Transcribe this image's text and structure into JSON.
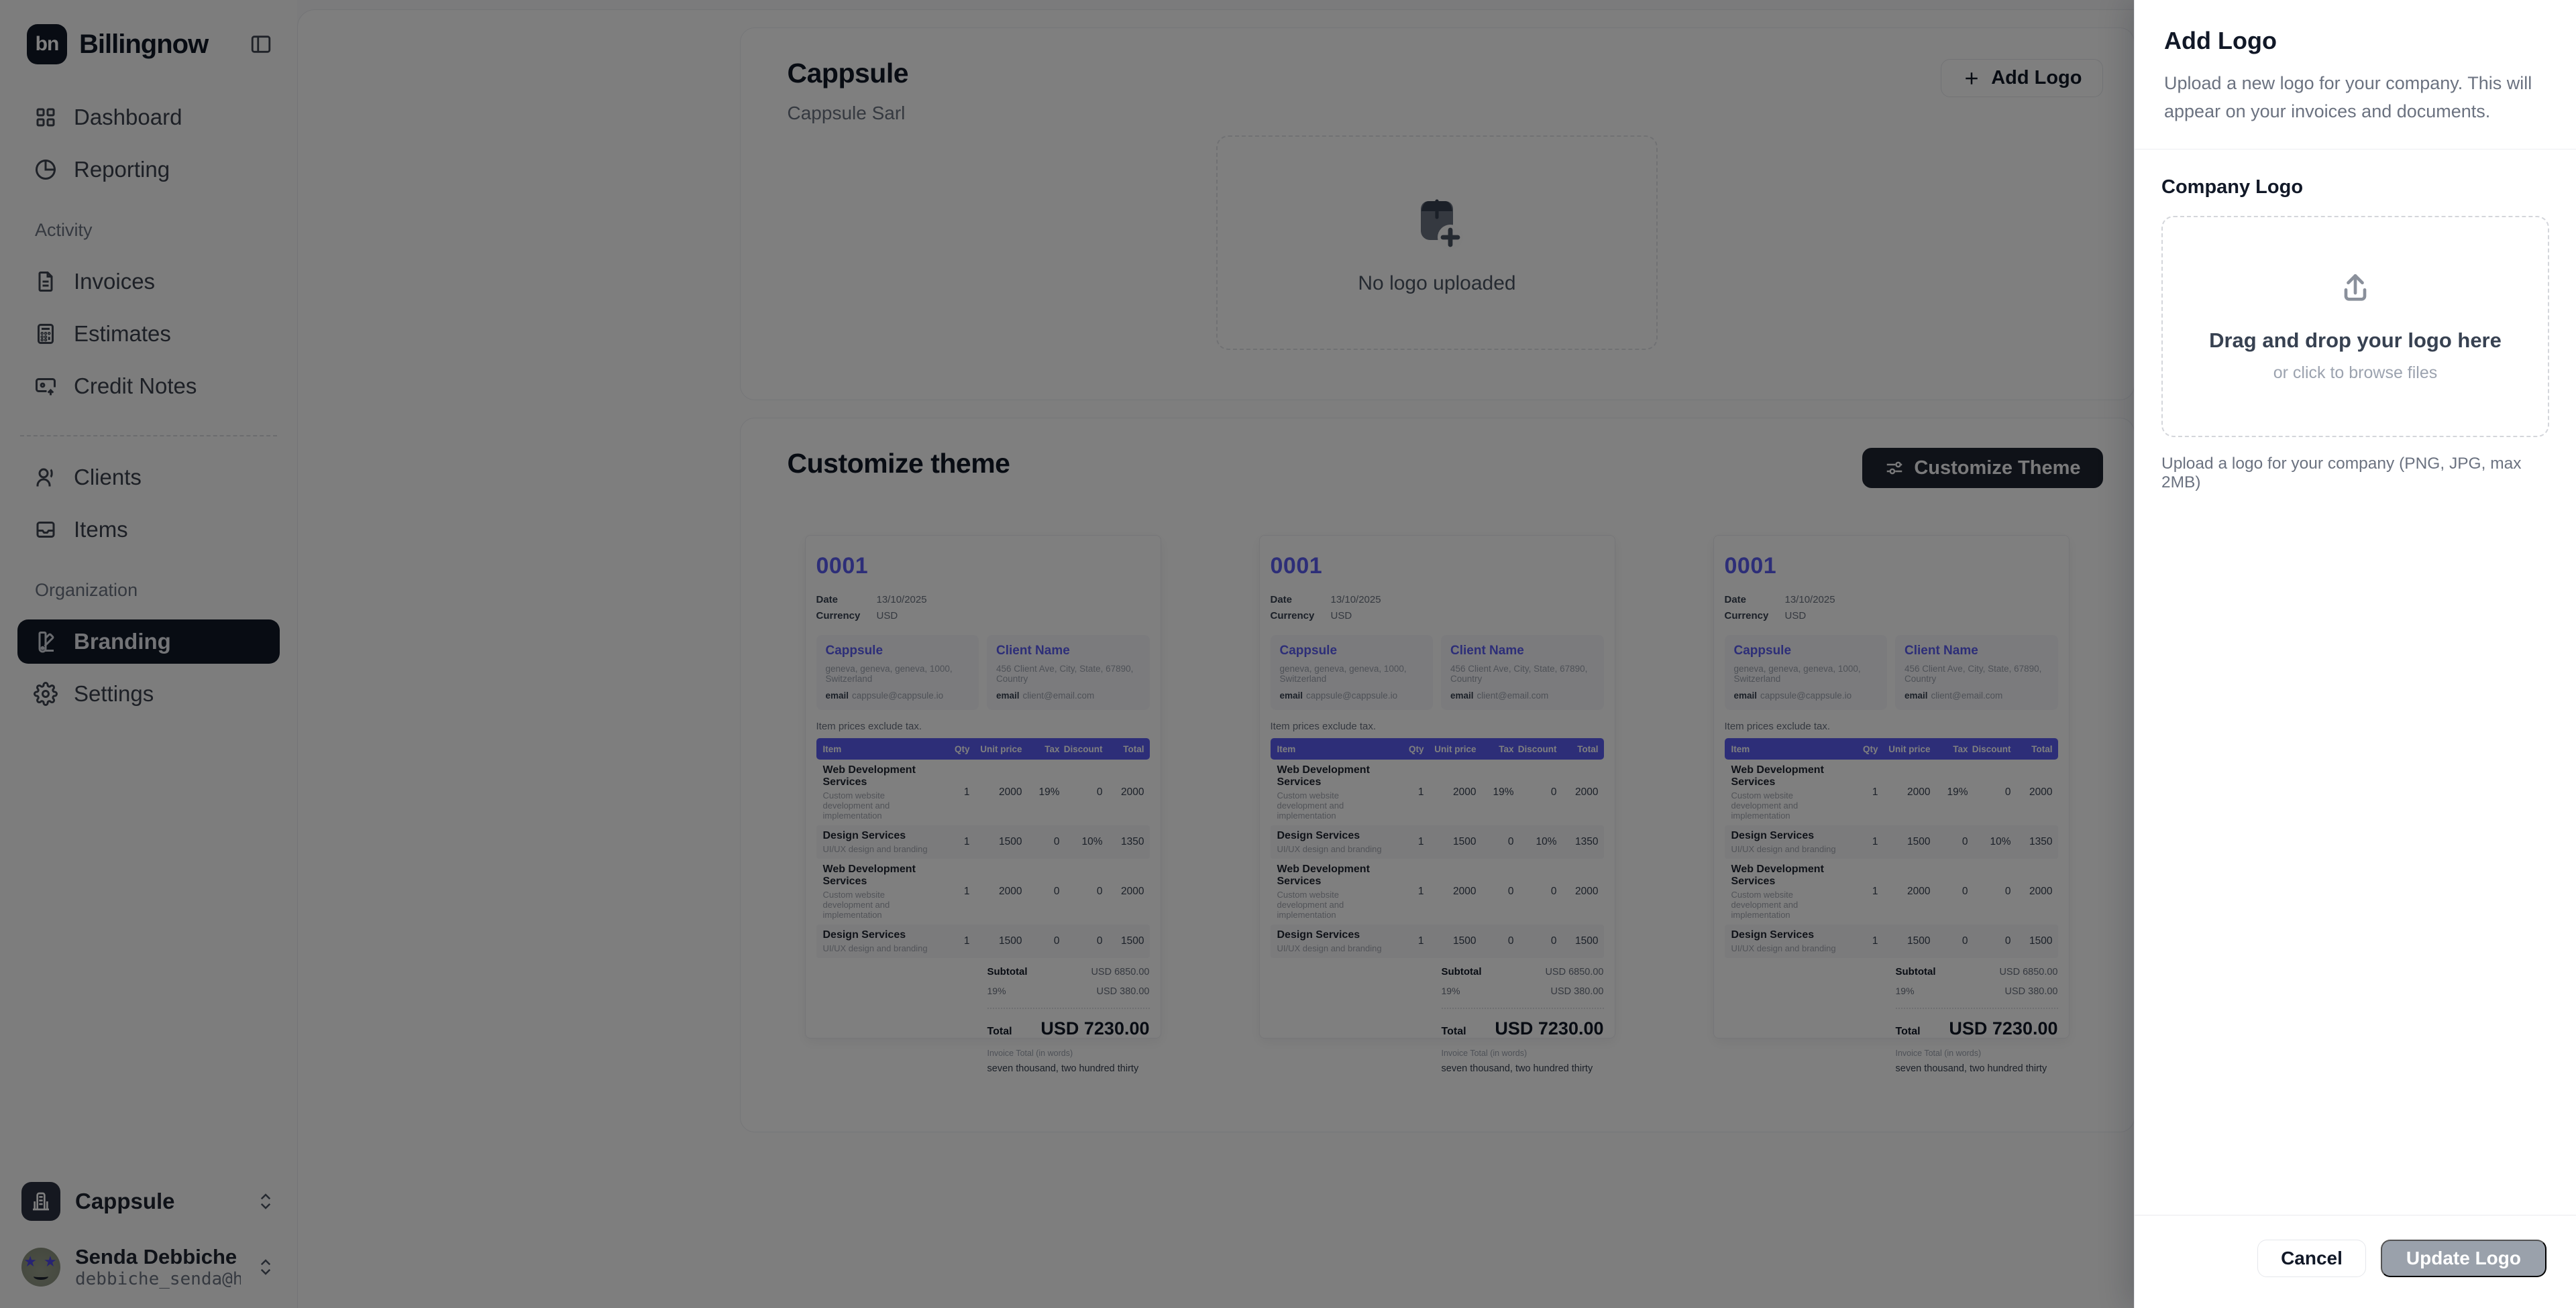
{
  "colors": {
    "accent": "#5a5cf0",
    "sidebar_active_bg": "#111827",
    "dark_button_bg": "#1f2430",
    "disabled_button_bg": "#9aa1ab",
    "overlay": "rgba(0,0,0,0.5)"
  },
  "sidebar": {
    "brand": {
      "initials": "bn",
      "name": "Billingnow"
    },
    "primary": [
      {
        "label": "Dashboard"
      },
      {
        "label": "Reporting"
      }
    ],
    "groups": [
      {
        "label": "Activity",
        "items": [
          {
            "label": "Invoices"
          },
          {
            "label": "Estimates"
          },
          {
            "label": "Credit Notes"
          }
        ]
      },
      {
        "label": "",
        "items": [
          {
            "label": "Clients"
          },
          {
            "label": "Items"
          }
        ]
      },
      {
        "label": "Organization",
        "items": [
          {
            "label": "Branding"
          },
          {
            "label": "Settings"
          }
        ]
      }
    ],
    "workspace": {
      "name": "Cappsule"
    },
    "user": {
      "name": "Senda Debbiche",
      "email": "debbiche_senda@hot…"
    }
  },
  "logo_card": {
    "title": "Cappsule",
    "subtitle": "Cappsule Sarl",
    "add_button_label": "Add Logo",
    "empty_state": "No logo uploaded"
  },
  "theme_card": {
    "title": "Customize theme",
    "button_label": "Customize Theme"
  },
  "invoice_preview": {
    "number": "0001",
    "meta": [
      {
        "label": "Date",
        "value": "13/10/2025"
      },
      {
        "label": "Currency",
        "value": "USD"
      }
    ],
    "from": {
      "name": "Cappsule",
      "address": "geneva, geneva, geneva, 1000, Switzerland",
      "email_label": "email",
      "email": "cappsule@cappsule.io"
    },
    "to": {
      "name": "Client Name",
      "address": "456 Client Ave, City, State, 67890, Country",
      "email_label": "email",
      "email": "client@email.com"
    },
    "tax_note": "Item prices exclude tax.",
    "table": {
      "headers": [
        "Item",
        "Qty",
        "Unit price",
        "Tax",
        "Discount",
        "Total"
      ],
      "rows": [
        {
          "name": "Web Development Services",
          "description": "Custom website development and implementation",
          "qty": "1",
          "unit_price": "2000",
          "tax": "19%",
          "discount": "0",
          "total": "2000"
        },
        {
          "name": "Design Services",
          "description": "UI/UX design and branding",
          "qty": "1",
          "unit_price": "1500",
          "tax": "0",
          "discount": "10%",
          "total": "1350"
        },
        {
          "name": "Web Development Services",
          "description": "Custom website development and implementation",
          "qty": "1",
          "unit_price": "2000",
          "tax": "0",
          "discount": "0",
          "total": "2000"
        },
        {
          "name": "Design Services",
          "description": "UI/UX design and branding",
          "qty": "1",
          "unit_price": "1500",
          "tax": "0",
          "discount": "0",
          "total": "1500"
        }
      ]
    },
    "totals": {
      "subtotal_label": "Subtotal",
      "subtotal": "USD 6850.00",
      "tax_label": "19%",
      "tax": "USD 380.00",
      "total_label": "Total",
      "total": "USD 7230.00"
    },
    "words_label": "Invoice Total (in words)",
    "words": "seven thousand, two hundred thirty"
  },
  "drawer": {
    "title": "Add Logo",
    "description": "Upload a new logo for your company. This will appear on your invoices and documents.",
    "field_label": "Company Logo",
    "dropzone_title": "Drag and drop your logo here",
    "dropzone_subtitle": "or click to browse files",
    "hint": "Upload a logo for your company (PNG, JPG, max 2MB)",
    "cancel_label": "Cancel",
    "submit_label": "Update Logo"
  }
}
